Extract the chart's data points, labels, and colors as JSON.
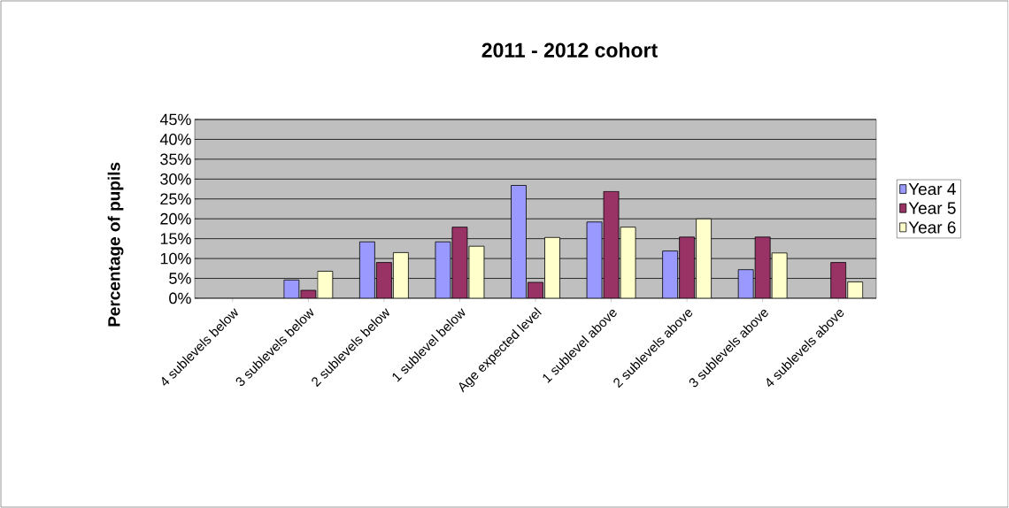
{
  "chart_data": {
    "type": "bar",
    "title": "2011 - 2012 cohort",
    "ylabel": "Percentage of pupils",
    "categories": [
      "4 sublevels below",
      "3 sublevels below",
      "2 sublevels below",
      "1 sublevel below",
      "Age expected level",
      "1 sublevel above",
      "2 sublevels above",
      "3 sublevels above",
      "4 sublevels above"
    ],
    "series": [
      {
        "name": "Year 4",
        "color": "#9999ff",
        "values": [
          null,
          4.6,
          14.2,
          14.2,
          28.4,
          19.2,
          11.9,
          7.2,
          null
        ]
      },
      {
        "name": "Year 5",
        "color": "#993366",
        "values": [
          null,
          2,
          9,
          17.9,
          4,
          26.9,
          15.4,
          15.4,
          9
        ]
      },
      {
        "name": "Year 6",
        "color": "#ffffcc",
        "values": [
          null,
          6.8,
          11.5,
          13.1,
          15.3,
          17.9,
          20,
          11.4,
          4.1
        ]
      }
    ],
    "ylim": [
      0,
      45
    ],
    "yticks": [
      {
        "value": 0,
        "label": "0%"
      },
      {
        "value": 5,
        "label": "5%"
      },
      {
        "value": 10,
        "label": "10%"
      },
      {
        "value": 15,
        "label": "15%"
      },
      {
        "value": 20,
        "label": "20%"
      },
      {
        "value": 25,
        "label": "25%"
      },
      {
        "value": 30,
        "label": "30%"
      },
      {
        "value": 35,
        "label": "35%"
      },
      {
        "value": 40,
        "label": "40%"
      },
      {
        "value": 45,
        "label": "45%"
      }
    ],
    "grid": "y",
    "legend": "right"
  }
}
